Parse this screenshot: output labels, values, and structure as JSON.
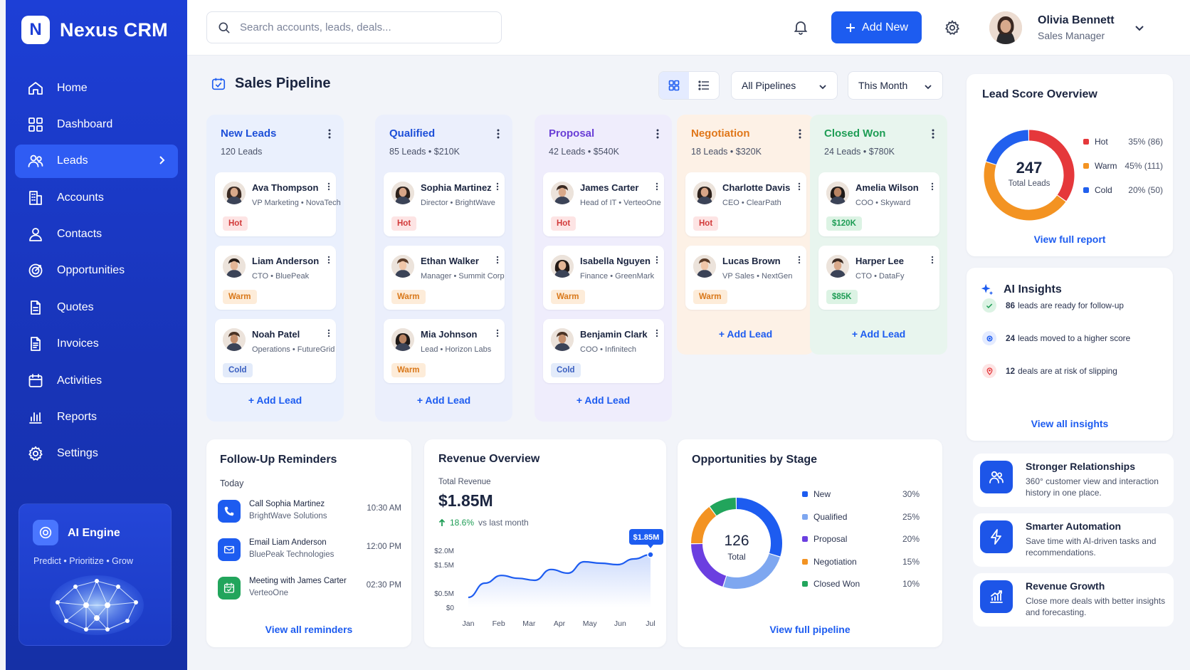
{
  "app": {
    "name": "Nexus CRM",
    "logo_letter": "N"
  },
  "sidebar": {
    "items": [
      {
        "label": "Home",
        "icon": "home-icon"
      },
      {
        "label": "Dashboard",
        "icon": "dashboard-icon"
      },
      {
        "label": "Leads",
        "icon": "users-icon",
        "active": true
      },
      {
        "label": "Accounts",
        "icon": "building-icon"
      },
      {
        "label": "Contacts",
        "icon": "user-icon"
      },
      {
        "label": "Opportunities",
        "icon": "target-icon"
      },
      {
        "label": "Quotes",
        "icon": "document-icon"
      },
      {
        "label": "Invoices",
        "icon": "invoice-icon"
      },
      {
        "label": "Activities",
        "icon": "calendar-icon"
      },
      {
        "label": "Reports",
        "icon": "bar-chart-icon"
      },
      {
        "label": "Settings",
        "icon": "gear-icon"
      }
    ],
    "ai_engine": {
      "title": "AI Engine",
      "tagline": "Predict • Prioritize • Grow"
    }
  },
  "topbar": {
    "search_placeholder": "Search accounts, leads, deals...",
    "add_new_label": "Add New",
    "user_name": "Olivia Bennett",
    "user_role": "Sales Manager"
  },
  "pipeline": {
    "title": "Sales Pipeline",
    "filter_pipeline": "All Pipelines",
    "filter_period": "This Month",
    "add_lead_label": "Add Lead",
    "columns": [
      {
        "title": "New Leads",
        "summary": "120 Leads",
        "color": "#1d4fd8",
        "bg": "#eaf0fd",
        "cards": [
          {
            "name": "Ava Thompson",
            "role": "VP Marketing • NovaTech",
            "tag": "Hot",
            "tagtype": "hot"
          },
          {
            "name": "Liam Anderson",
            "role": "CTO • BluePeak",
            "tag": "Warm",
            "tagtype": "warm"
          },
          {
            "name": "Noah Patel",
            "role": "Operations • FutureGrid",
            "tag": "Cold",
            "tagtype": "cold"
          }
        ]
      },
      {
        "title": "Qualified",
        "summary": "85 Leads • $210K",
        "color": "#1d4fd8",
        "bg": "#ebeffc",
        "cards": [
          {
            "name": "Sophia Martinez",
            "role": "Director • BrightWave",
            "tag": "Hot",
            "tagtype": "hot"
          },
          {
            "name": "Ethan Walker",
            "role": "Manager • Summit Corp",
            "tag": "Warm",
            "tagtype": "warm"
          },
          {
            "name": "Mia Johnson",
            "role": "Lead • Horizon Labs",
            "tag": "Warm",
            "tagtype": "warm"
          }
        ]
      },
      {
        "title": "Proposal",
        "summary": "42 Leads • $540K",
        "color": "#6a3fd6",
        "bg": "#efedfc",
        "cards": [
          {
            "name": "James Carter",
            "role": "Head of IT • VerteoOne",
            "tag": "Hot",
            "tagtype": "hot"
          },
          {
            "name": "Isabella Nguyen",
            "role": "Finance • GreenMark",
            "tag": "Warm",
            "tagtype": "warm"
          },
          {
            "name": "Benjamin Clark",
            "role": "COO • Infinitech",
            "tag": "Cold",
            "tagtype": "cold"
          }
        ]
      },
      {
        "title": "Negotiation",
        "summary": "18 Leads • $320K",
        "color": "#e0771a",
        "bg": "#fdf1e6",
        "cards": [
          {
            "name": "Charlotte Davis",
            "role": "CEO • ClearPath",
            "tag": "Hot",
            "tagtype": "hot"
          },
          {
            "name": "Lucas Brown",
            "role": "VP Sales • NextGen",
            "tag": "Warm",
            "tagtype": "warm"
          }
        ]
      },
      {
        "title": "Closed Won",
        "summary": "24 Leads • $780K",
        "color": "#1e9d55",
        "bg": "#e8f5ee",
        "cards": [
          {
            "name": "Amelia Wilson",
            "role": "COO • Skyward",
            "tag": "$120K",
            "tagtype": "money"
          },
          {
            "name": "Harper Lee",
            "role": "CTO • DataFy",
            "tag": "$85K",
            "tagtype": "money"
          }
        ]
      }
    ]
  },
  "lead_score": {
    "title": "Lead Score Overview",
    "total": "247",
    "total_label": "Total Leads",
    "segments": [
      {
        "label": "Hot",
        "value": "35% (86)",
        "pct": 35,
        "color": "#e5383b"
      },
      {
        "label": "Warm",
        "value": "45% (111)",
        "pct": 45,
        "color": "#f39322"
      },
      {
        "label": "Cold",
        "value": "20% (50)",
        "pct": 20,
        "color": "#2160ee"
      }
    ],
    "link": "View full report"
  },
  "ai_insights": {
    "title": "AI Insights",
    "items": [
      {
        "bold": "86",
        "text": "leads are ready for follow-up",
        "color": "#1e9d55",
        "bg": "#dcf3e4"
      },
      {
        "bold": "24",
        "text": "leads moved to a higher score",
        "color": "#1d5cf0",
        "bg": "#e4ebff"
      },
      {
        "bold": "12",
        "text": "deals are at risk of slipping",
        "color": "#e5383b",
        "bg": "#fde4e4"
      }
    ],
    "link": "View all insights"
  },
  "features": [
    {
      "title": "Stronger Relationships",
      "desc": "360° customer view and interaction history in one place.",
      "icon": "people-icon"
    },
    {
      "title": "Smarter Automation",
      "desc": "Save time with AI-driven tasks and recommendations.",
      "icon": "lightning-icon"
    },
    {
      "title": "Revenue Growth",
      "desc": "Close more deals with better insights and forecasting.",
      "icon": "growth-chart-icon"
    }
  ],
  "reminders": {
    "title": "Follow-Up Reminders",
    "section": "Today",
    "items": [
      {
        "title": "Call Sophia Martinez",
        "sub": "BrightWave Solutions",
        "time": "10:30 AM",
        "icon": "phone-icon",
        "color": "#1d5cf0",
        "bg": "#1d5cf0"
      },
      {
        "title": "Email Liam Anderson",
        "sub": "BluePeak Technologies",
        "time": "12:00 PM",
        "icon": "mail-icon",
        "color": "#1d5cf0",
        "bg": "#1d5cf0"
      },
      {
        "title": "Meeting with James Carter",
        "sub": "VerteoOne",
        "time": "02:30 PM",
        "icon": "calendar-check-icon",
        "color": "#22a55c",
        "bg": "#22a55c"
      }
    ],
    "link": "View all reminders"
  },
  "revenue": {
    "title": "Revenue Overview",
    "label": "Total Revenue",
    "total": "$1.85M",
    "change": "18.6%",
    "change_note": "vs last month",
    "callout": "$1.85M"
  },
  "chart_data": {
    "type": "line",
    "title": "Revenue Overview",
    "x": [
      "Jan",
      "Feb",
      "Mar",
      "Apr",
      "May",
      "Jun",
      "Jul"
    ],
    "y_ticks": [
      "$0",
      "$0.5M",
      "$1.5M",
      "$2.0M"
    ],
    "series": [
      {
        "name": "Total Revenue",
        "points": [
          {
            "x": "Jan",
            "y": 0.35
          },
          {
            "x": "Jan-Feb",
            "y": 0.85
          },
          {
            "x": "Feb",
            "y": 1.12
          },
          {
            "x": "Feb-Mar",
            "y": 1.02
          },
          {
            "x": "Mar",
            "y": 0.95
          },
          {
            "x": "Mar-Apr",
            "y": 1.33
          },
          {
            "x": "Apr",
            "y": 1.2
          },
          {
            "x": "Apr-May",
            "y": 1.6
          },
          {
            "x": "May",
            "y": 1.55
          },
          {
            "x": "Jun",
            "y": 1.5
          },
          {
            "x": "Jun-Jul",
            "y": 1.7
          },
          {
            "x": "Jul",
            "y": 1.85
          }
        ]
      }
    ],
    "ylim": [
      0,
      2.0
    ],
    "color": "#1d5cf0"
  },
  "opportunities": {
    "title": "Opportunities by Stage",
    "total": "126",
    "total_label": "Total",
    "stages": [
      {
        "label": "New",
        "pct": 30,
        "value": "30%",
        "color": "#1d5cf0"
      },
      {
        "label": "Qualified",
        "pct": 25,
        "value": "25%",
        "color": "#7ea7f0"
      },
      {
        "label": "Proposal",
        "pct": 20,
        "value": "20%",
        "color": "#6b3fe0"
      },
      {
        "label": "Negotiation",
        "pct": 15,
        "value": "15%",
        "color": "#f39322"
      },
      {
        "label": "Closed Won",
        "pct": 10,
        "value": "10%",
        "color": "#22a55c"
      }
    ],
    "link": "View full pipeline"
  }
}
